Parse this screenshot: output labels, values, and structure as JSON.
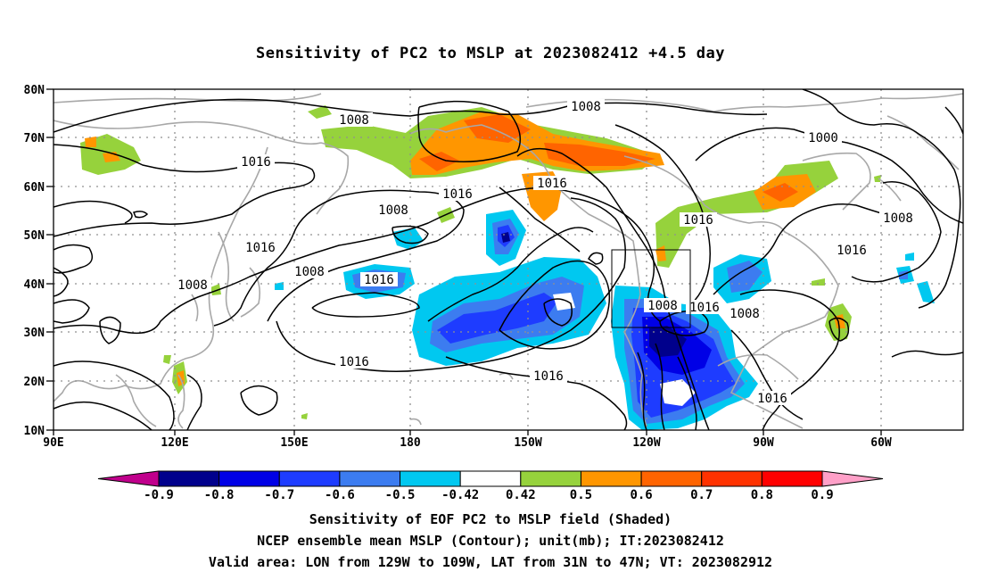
{
  "title": "Sensitivity of PC2 to MSLP at 2023082412 +4.5 day",
  "lat_labels": [
    "80N",
    "70N",
    "60N",
    "50N",
    "40N",
    "30N",
    "20N",
    "10N"
  ],
  "lon_labels": [
    "90E",
    "120E",
    "150E",
    "180",
    "150W",
    "120W",
    "90W",
    "60W"
  ],
  "contour_labels": [
    "1008",
    "1008",
    "1000",
    "1016",
    "1016",
    "1016",
    "1016",
    "1008",
    "1016",
    "1008",
    "1008",
    "1016",
    "1016",
    "1008",
    "1016",
    "1008",
    "1016",
    "1008",
    "1016",
    "1016",
    "1008",
    "1016"
  ],
  "colorbar": {
    "colors": [
      "#c0008c",
      "#00008c",
      "#0000e6",
      "#1e3cff",
      "#3c7cf0",
      "#00c8f0",
      "#ffffff",
      "#96d23c",
      "#ff9600",
      "#ff6400",
      "#ff3200",
      "#ff0000",
      "#ffa0c8"
    ],
    "labels": [
      "-0.9",
      "-0.8",
      "-0.7",
      "-0.6",
      "-0.5",
      "-0.42",
      "0.42",
      "0.5",
      "0.6",
      "0.7",
      "0.8",
      "0.9"
    ]
  },
  "footer": {
    "line1": "Sensitivity of EOF PC2 to MSLP field (Shaded)",
    "line2": "NCEP ensemble mean MSLP (Contour); unit(mb); IT:2023082412",
    "line3": "Valid area: LON from 129W to 109W, LAT from 31N to 47N; VT: 2023082912"
  },
  "colors": {
    "coast": "#a8a8a8",
    "green": "#96d23c",
    "orange": "#ff9600",
    "dark_orange": "#ff6400",
    "light_blue": "#00c8f0",
    "mid_blue": "#3c7cf0",
    "blue": "#1e3cff",
    "deep_blue": "#0000e6",
    "navy": "#00008c"
  }
}
